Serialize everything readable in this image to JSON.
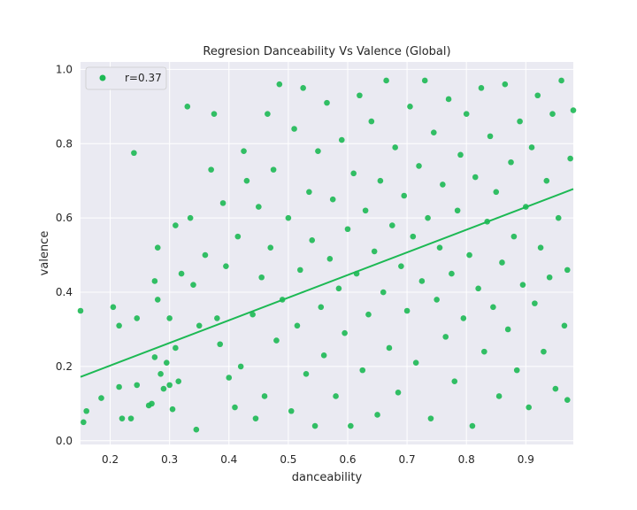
{
  "chart_data": {
    "type": "scatter",
    "title": "Regresion Danceability Vs Valence (Global)",
    "xlabel": "danceability",
    "ylabel": "valence",
    "xlim": [
      0.15,
      0.98
    ],
    "ylim": [
      -0.01,
      1.02
    ],
    "xticks": [
      "0.2",
      "0.3",
      "0.4",
      "0.5",
      "0.6",
      "0.7",
      "0.8",
      "0.9"
    ],
    "xtick_values": [
      0.2,
      0.3,
      0.4,
      0.5,
      0.6,
      0.7,
      0.8,
      0.9
    ],
    "yticks": [
      "0.0",
      "0.2",
      "0.4",
      "0.6",
      "0.8",
      "1.0"
    ],
    "ytick_values": [
      0.0,
      0.2,
      0.4,
      0.6,
      0.8,
      1.0
    ],
    "grid": true,
    "legend": {
      "placement": "top-left",
      "entries": [
        "r=0.37"
      ]
    },
    "series": [
      {
        "name": "r=0.37",
        "color": "#1db954",
        "points": [
          [
            0.15,
            0.35
          ],
          [
            0.155,
            0.05
          ],
          [
            0.16,
            0.08
          ],
          [
            0.185,
            0.115
          ],
          [
            0.205,
            0.36
          ],
          [
            0.215,
            0.31
          ],
          [
            0.215,
            0.145
          ],
          [
            0.22,
            0.06
          ],
          [
            0.235,
            0.06
          ],
          [
            0.24,
            0.775
          ],
          [
            0.245,
            0.33
          ],
          [
            0.245,
            0.15
          ],
          [
            0.265,
            0.095
          ],
          [
            0.27,
            0.1
          ],
          [
            0.275,
            0.225
          ],
          [
            0.275,
            0.43
          ],
          [
            0.28,
            0.52
          ],
          [
            0.28,
            0.38
          ],
          [
            0.285,
            0.18
          ],
          [
            0.29,
            0.14
          ],
          [
            0.295,
            0.21
          ],
          [
            0.3,
            0.33
          ],
          [
            0.3,
            0.15
          ],
          [
            0.305,
            0.085
          ],
          [
            0.31,
            0.58
          ],
          [
            0.31,
            0.25
          ],
          [
            0.315,
            0.16
          ],
          [
            0.32,
            0.45
          ],
          [
            0.33,
            0.9
          ],
          [
            0.335,
            0.6
          ],
          [
            0.34,
            0.42
          ],
          [
            0.345,
            0.03
          ],
          [
            0.35,
            0.31
          ],
          [
            0.36,
            0.5
          ],
          [
            0.37,
            0.73
          ],
          [
            0.375,
            0.88
          ],
          [
            0.38,
            0.33
          ],
          [
            0.385,
            0.26
          ],
          [
            0.39,
            0.64
          ],
          [
            0.395,
            0.47
          ],
          [
            0.4,
            0.17
          ],
          [
            0.41,
            0.09
          ],
          [
            0.415,
            0.55
          ],
          [
            0.42,
            0.2
          ],
          [
            0.425,
            0.78
          ],
          [
            0.43,
            0.7
          ],
          [
            0.44,
            0.34
          ],
          [
            0.445,
            0.06
          ],
          [
            0.45,
            0.63
          ],
          [
            0.455,
            0.44
          ],
          [
            0.46,
            0.12
          ],
          [
            0.465,
            0.88
          ],
          [
            0.47,
            0.52
          ],
          [
            0.475,
            0.73
          ],
          [
            0.48,
            0.27
          ],
          [
            0.485,
            0.96
          ],
          [
            0.49,
            0.38
          ],
          [
            0.5,
            0.6
          ],
          [
            0.505,
            0.08
          ],
          [
            0.51,
            0.84
          ],
          [
            0.515,
            0.31
          ],
          [
            0.52,
            0.46
          ],
          [
            0.525,
            0.95
          ],
          [
            0.53,
            0.18
          ],
          [
            0.535,
            0.67
          ],
          [
            0.54,
            0.54
          ],
          [
            0.545,
            0.04
          ],
          [
            0.55,
            0.78
          ],
          [
            0.555,
            0.36
          ],
          [
            0.56,
            0.23
          ],
          [
            0.565,
            0.91
          ],
          [
            0.57,
            0.49
          ],
          [
            0.575,
            0.65
          ],
          [
            0.58,
            0.12
          ],
          [
            0.585,
            0.41
          ],
          [
            0.59,
            0.81
          ],
          [
            0.595,
            0.29
          ],
          [
            0.6,
            0.57
          ],
          [
            0.605,
            0.04
          ],
          [
            0.61,
            0.72
          ],
          [
            0.615,
            0.45
          ],
          [
            0.62,
            0.93
          ],
          [
            0.625,
            0.19
          ],
          [
            0.63,
            0.62
          ],
          [
            0.635,
            0.34
          ],
          [
            0.64,
            0.86
          ],
          [
            0.645,
            0.51
          ],
          [
            0.65,
            0.07
          ],
          [
            0.655,
            0.7
          ],
          [
            0.66,
            0.4
          ],
          [
            0.665,
            0.97
          ],
          [
            0.67,
            0.25
          ],
          [
            0.675,
            0.58
          ],
          [
            0.68,
            0.79
          ],
          [
            0.685,
            0.13
          ],
          [
            0.69,
            0.47
          ],
          [
            0.695,
            0.66
          ],
          [
            0.7,
            0.35
          ],
          [
            0.705,
            0.9
          ],
          [
            0.71,
            0.55
          ],
          [
            0.715,
            0.21
          ],
          [
            0.72,
            0.74
          ],
          [
            0.725,
            0.43
          ],
          [
            0.73,
            0.97
          ],
          [
            0.735,
            0.6
          ],
          [
            0.74,
            0.06
          ],
          [
            0.745,
            0.83
          ],
          [
            0.75,
            0.38
          ],
          [
            0.755,
            0.52
          ],
          [
            0.76,
            0.69
          ],
          [
            0.765,
            0.28
          ],
          [
            0.77,
            0.92
          ],
          [
            0.775,
            0.45
          ],
          [
            0.78,
            0.16
          ],
          [
            0.785,
            0.62
          ],
          [
            0.79,
            0.77
          ],
          [
            0.795,
            0.33
          ],
          [
            0.8,
            0.88
          ],
          [
            0.805,
            0.5
          ],
          [
            0.81,
            0.04
          ],
          [
            0.815,
            0.71
          ],
          [
            0.82,
            0.41
          ],
          [
            0.825,
            0.95
          ],
          [
            0.83,
            0.24
          ],
          [
            0.835,
            0.59
          ],
          [
            0.84,
            0.82
          ],
          [
            0.845,
            0.36
          ],
          [
            0.85,
            0.67
          ],
          [
            0.855,
            0.12
          ],
          [
            0.86,
            0.48
          ],
          [
            0.865,
            0.96
          ],
          [
            0.87,
            0.3
          ],
          [
            0.875,
            0.75
          ],
          [
            0.88,
            0.55
          ],
          [
            0.885,
            0.19
          ],
          [
            0.89,
            0.86
          ],
          [
            0.895,
            0.42
          ],
          [
            0.9,
            0.63
          ],
          [
            0.905,
            0.09
          ],
          [
            0.91,
            0.79
          ],
          [
            0.915,
            0.37
          ],
          [
            0.92,
            0.93
          ],
          [
            0.925,
            0.52
          ],
          [
            0.93,
            0.24
          ],
          [
            0.935,
            0.7
          ],
          [
            0.94,
            0.44
          ],
          [
            0.945,
            0.88
          ],
          [
            0.95,
            0.14
          ],
          [
            0.955,
            0.6
          ],
          [
            0.96,
            0.97
          ],
          [
            0.965,
            0.31
          ],
          [
            0.97,
            0.11
          ],
          [
            0.975,
            0.76
          ],
          [
            0.98,
            0.89
          ],
          [
            0.97,
            0.46
          ]
        ]
      }
    ],
    "regression_line": {
      "x": [
        0.15,
        0.98
      ],
      "y": [
        0.172,
        0.678
      ]
    }
  }
}
